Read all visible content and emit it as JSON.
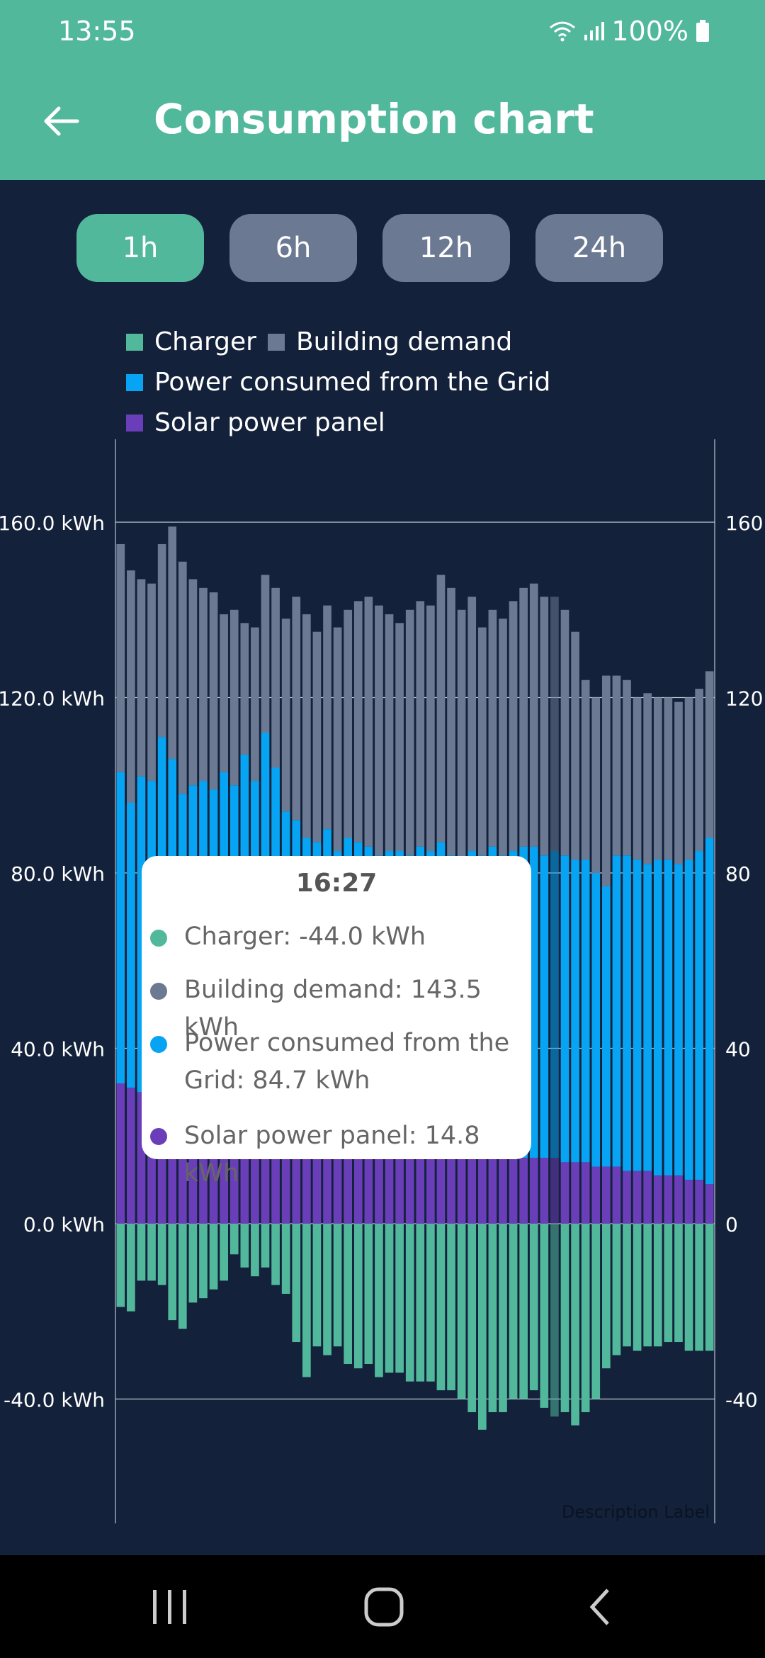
{
  "status": {
    "time": "13:55",
    "battery": "100%"
  },
  "app_bar": {
    "title": "Consumption chart",
    "back_icon": "arrow-left-icon"
  },
  "time_ranges": [
    {
      "label": "1h",
      "active": true
    },
    {
      "label": "6h",
      "active": false
    },
    {
      "label": "12h",
      "active": false
    },
    {
      "label": "24h",
      "active": false
    }
  ],
  "legend": {
    "charger": "Charger",
    "building": "Building demand",
    "grid": "Power consumed from the Grid",
    "solar": "Solar power panel"
  },
  "colors": {
    "charger": "#52b89c",
    "building": "#6b7a92",
    "grid": "#06a4f2",
    "solar": "#6a3eb8",
    "header": "#52b89c",
    "background": "#13213a"
  },
  "tooltip": {
    "time": "16:27",
    "charger": "Charger: -44.0 kWh",
    "building": "Building demand: 143.5 kWh",
    "grid": "Power consumed from the Grid: 84.7 kWh",
    "solar": "Solar power panel: 14.8 kWh"
  },
  "description_label": "Description Label",
  "chart_data": {
    "type": "bar",
    "stacked": true,
    "title": "",
    "left_axis_ticks": [
      "160.0 kWh",
      "120.0 kWh",
      "80.0 kWh",
      "40.0 kWh",
      "0.0 kWh",
      "-40.0 kWh"
    ],
    "right_axis_ticks": [
      "160",
      "120",
      "80",
      "40",
      "0",
      "-40"
    ],
    "tick_values": [
      160,
      120,
      80,
      40,
      0,
      -40
    ],
    "ylim": [
      -68,
      180
    ],
    "grid": true,
    "highlight_index": 42,
    "series": [
      {
        "name": "Building demand",
        "key": "building",
        "values": [
          155,
          149,
          147,
          146,
          155,
          159,
          151,
          147,
          145,
          144,
          139,
          140,
          137,
          136,
          148,
          145,
          138,
          143,
          139,
          135,
          141,
          136,
          140,
          142,
          143,
          141,
          139,
          137,
          140,
          142,
          141,
          148,
          145,
          140,
          143,
          136,
          140,
          138,
          142,
          145,
          146,
          143,
          143,
          140,
          135,
          124,
          120,
          125,
          125,
          124,
          120,
          121,
          120,
          120,
          119,
          120,
          122,
          126
        ]
      },
      {
        "name": "Power consumed from the Grid",
        "key": "grid",
        "values": [
          103,
          96,
          102,
          101,
          111,
          106,
          98,
          100,
          101,
          99,
          103,
          100,
          107,
          101,
          112,
          104,
          94,
          92,
          88,
          87,
          90,
          85,
          88,
          87,
          86,
          84,
          85,
          85,
          84,
          86,
          85,
          87,
          84,
          82,
          85,
          84,
          86,
          84,
          85,
          86,
          86,
          84,
          85,
          84,
          83,
          83,
          80,
          77,
          84,
          84,
          83,
          82,
          83,
          83,
          82,
          83,
          85,
          88
        ]
      },
      {
        "name": "Solar power panel",
        "key": "solar",
        "values": [
          32,
          31,
          30,
          29,
          30,
          29,
          28,
          28,
          27,
          27,
          26,
          26,
          26,
          25,
          25,
          24,
          24,
          23,
          23,
          22,
          22,
          21,
          21,
          21,
          20,
          20,
          20,
          19,
          19,
          19,
          18,
          18,
          18,
          17,
          17,
          17,
          16,
          16,
          16,
          15,
          15,
          15,
          15,
          14,
          14,
          14,
          13,
          13,
          13,
          12,
          12,
          12,
          11,
          11,
          11,
          10,
          10,
          9
        ]
      },
      {
        "name": "Charger",
        "key": "charger",
        "values": [
          -19,
          -20,
          -13,
          -13,
          -14,
          -22,
          -24,
          -18,
          -17,
          -15,
          -13,
          -7,
          -10,
          -12,
          -10,
          -14,
          -16,
          -27,
          -35,
          -28,
          -30,
          -28,
          -32,
          -33,
          -32,
          -35,
          -34,
          -34,
          -36,
          -36,
          -36,
          -38,
          -38,
          -40,
          -43,
          -47,
          -43,
          -43,
          -40,
          -40,
          -38,
          -42,
          -44,
          -43,
          -46,
          -43,
          -40,
          -33,
          -30,
          -28,
          -29,
          -28,
          -28,
          -27,
          -27,
          -29,
          -29,
          -29
        ]
      }
    ]
  }
}
